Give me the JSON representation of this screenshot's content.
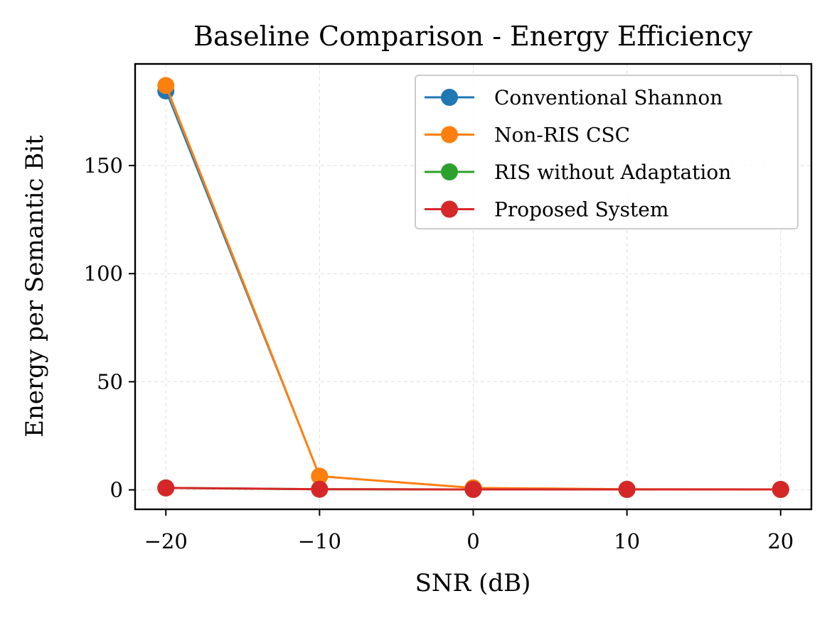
{
  "chart_data": {
    "type": "line",
    "title": "Baseline Comparison - Energy Efficiency",
    "xlabel": "SNR (dB)",
    "ylabel": "Energy per Semantic Bit",
    "x": [
      -20,
      -10,
      0,
      10,
      20
    ],
    "x_ticks": [
      -20,
      -10,
      0,
      10,
      20
    ],
    "x_tick_labels": [
      "−20",
      "−10",
      "0",
      "10",
      "20"
    ],
    "y_ticks": [
      0,
      50,
      100,
      150
    ],
    "y_tick_labels": [
      "0",
      "50",
      "100",
      "150"
    ],
    "xlim": [
      -22,
      22
    ],
    "ylim": [
      -9,
      197
    ],
    "grid": true,
    "legend_position": "top-right",
    "series": [
      {
        "name": "Conventional Shannon",
        "color": "#1f77b4",
        "values": [
          184.5,
          6.3,
          0.9,
          0.3,
          0.2
        ]
      },
      {
        "name": "Non-RIS CSC",
        "color": "#ff7f0e",
        "values": [
          187.0,
          6.3,
          0.9,
          0.3,
          0.2
        ]
      },
      {
        "name": "RIS without Adaptation",
        "color": "#2ca02c",
        "values": [
          0.9,
          0.3,
          0.2,
          0.2,
          0.2
        ]
      },
      {
        "name": "Proposed System",
        "color": "#d62728",
        "values": [
          0.9,
          0.3,
          0.2,
          0.2,
          0.2
        ]
      }
    ]
  }
}
